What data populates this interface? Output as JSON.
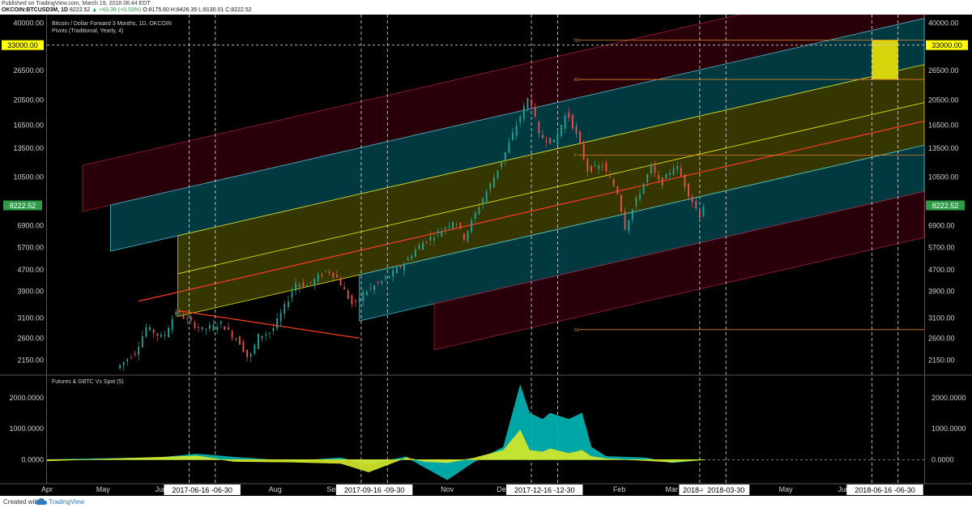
{
  "header": {
    "published": "Published on TradingView.com, March 19, 2018 06:44 EDT",
    "symbol": "OKCOIN:BTCUSD3M, 1D",
    "last": "8222.52",
    "change": "▲ +43.36 (+0.53%)",
    "ohlc": "O:8175.60 H:8426.35 L:8130.01 C:8222.52"
  },
  "footer": {
    "created_with": "Created with",
    "brand": "TradingView"
  },
  "chart_data": [
    {
      "type": "candlestick",
      "title": "Bitcoin / Dollar Forward 3 Months, 1D, OKCOIN",
      "subtitle": "Pivots (Traditional, Yearly, 4)",
      "y_scale": "log",
      "ylim": [
        1900,
        43000
      ],
      "y_ticks": [
        "2150.00",
        "2600.00",
        "3100.00",
        "3900.00",
        "4700.00",
        "5700.00",
        "6900.00",
        "10500.00",
        "13500.00",
        "16500.00",
        "20500.00",
        "26500.00",
        "40000.00"
      ],
      "highlight_label": "33000.00",
      "highlight_value": 33000,
      "last_price_label": "8222.52",
      "last_price": 8222.52,
      "x_range": [
        "2017-04-01",
        "2018-07-14"
      ],
      "x_tick_labels": [
        {
          "label": "Apr",
          "date": "2017-04-01"
        },
        {
          "label": "May",
          "date": "2017-05-01"
        },
        {
          "label": "Jun",
          "date": "2017-06-01"
        },
        {
          "label": "Aug",
          "date": "2017-08-01"
        },
        {
          "label": "Sep",
          "date": "2017-09-01"
        },
        {
          "label": "Nov",
          "date": "2017-11-01"
        },
        {
          "label": "Dec",
          "date": "2017-12-01"
        },
        {
          "label": "Feb",
          "date": "2018-02-01"
        },
        {
          "label": "Mar",
          "date": "2018-03-01"
        },
        {
          "label": "May",
          "date": "2018-05-01"
        },
        {
          "label": "Jun",
          "date": "2018-06-01"
        }
      ],
      "x_highlight_labels": [
        {
          "label": "2017-06-16 -06-30",
          "date": "2017-06-23"
        },
        {
          "label": "2017-09-16 -09-30",
          "date": "2017-09-23"
        },
        {
          "label": "2017-12-16 -12-30",
          "date": "2017-12-23"
        },
        {
          "label": "2018-0",
          "date": "2018-03-13"
        },
        {
          "label": "2018-03-30",
          "date": "2018-03-30"
        },
        {
          "label": "2018-06-16 -06-30",
          "date": "2018-06-23"
        }
      ],
      "expiry_lines": [
        "2017-06-16",
        "2017-06-30",
        "2017-09-16",
        "2017-09-30",
        "2017-12-16",
        "2017-12-30",
        "2018-03-16",
        "2018-03-30",
        "2018-06-16",
        "2018-06-30"
      ],
      "price_path": [
        {
          "date": "2017-05-10",
          "price": 2000
        },
        {
          "date": "2017-05-20",
          "price": 2300
        },
        {
          "date": "2017-05-26",
          "price": 2850
        },
        {
          "date": "2017-06-04",
          "price": 2600
        },
        {
          "date": "2017-06-11",
          "price": 3300
        },
        {
          "date": "2017-06-18",
          "price": 3000
        },
        {
          "date": "2017-06-25",
          "price": 2800
        },
        {
          "date": "2017-07-05",
          "price": 2950
        },
        {
          "date": "2017-07-15",
          "price": 2500
        },
        {
          "date": "2017-07-20",
          "price": 2150
        },
        {
          "date": "2017-07-25",
          "price": 2650
        },
        {
          "date": "2017-08-01",
          "price": 2750
        },
        {
          "date": "2017-08-07",
          "price": 3300
        },
        {
          "date": "2017-08-14",
          "price": 4200
        },
        {
          "date": "2017-08-20",
          "price": 4100
        },
        {
          "date": "2017-08-31",
          "price": 4700
        },
        {
          "date": "2017-09-05",
          "price": 4400
        },
        {
          "date": "2017-09-14",
          "price": 3400
        },
        {
          "date": "2017-09-18",
          "price": 3800
        },
        {
          "date": "2017-09-30",
          "price": 4300
        },
        {
          "date": "2017-10-10",
          "price": 4900
        },
        {
          "date": "2017-10-20",
          "price": 5900
        },
        {
          "date": "2017-11-01",
          "price": 6700
        },
        {
          "date": "2017-11-07",
          "price": 7300
        },
        {
          "date": "2017-11-12",
          "price": 6200
        },
        {
          "date": "2017-11-20",
          "price": 8200
        },
        {
          "date": "2017-11-28",
          "price": 10500
        },
        {
          "date": "2017-12-05",
          "price": 13500
        },
        {
          "date": "2017-12-10",
          "price": 16500
        },
        {
          "date": "2017-12-17",
          "price": 21500
        },
        {
          "date": "2017-12-22",
          "price": 15000
        },
        {
          "date": "2017-12-30",
          "price": 14200
        },
        {
          "date": "2018-01-06",
          "price": 18500
        },
        {
          "date": "2018-01-12",
          "price": 14500
        },
        {
          "date": "2018-01-17",
          "price": 11200
        },
        {
          "date": "2018-01-25",
          "price": 11600
        },
        {
          "date": "2018-02-02",
          "price": 9200
        },
        {
          "date": "2018-02-06",
          "price": 6800
        },
        {
          "date": "2018-02-12",
          "price": 8600
        },
        {
          "date": "2018-02-20",
          "price": 11500
        },
        {
          "date": "2018-02-25",
          "price": 9800
        },
        {
          "date": "2018-03-05",
          "price": 11800
        },
        {
          "date": "2018-03-12",
          "price": 9100
        },
        {
          "date": "2018-03-18",
          "price": 7500
        },
        {
          "date": "2018-03-19",
          "price": 8222.52
        }
      ],
      "pivot_levels": [
        {
          "price": 34500,
          "label": "R2"
        },
        {
          "price": 24500,
          "label": "R1"
        },
        {
          "price": 12700,
          "label": "P"
        },
        {
          "price": 2800,
          "label": "S1"
        }
      ],
      "pitchfork": {
        "pivots": [
          {
            "date": "2017-06-10",
            "price": 3300
          },
          {
            "date": "2017-09-15",
            "price": 2600
          },
          {
            "date": "2017-10-25",
            "price": 6300
          }
        ],
        "median_slope_per_day": 0.00372
      },
      "colors": {
        "up": "#26a69a",
        "down": "#ef5350",
        "median": "#ff3b1f",
        "highlight": "#ffff00",
        "target_box": "#d6d40a"
      }
    },
    {
      "type": "area",
      "title": "Futures & GBTC Vs Spot (5)",
      "y_tick_labels": [
        "2000.0000",
        "1000.0000",
        "0.0000"
      ],
      "ylim": [
        -750,
        2700
      ],
      "series": [
        {
          "color": "#00b3b3",
          "values": [
            {
              "date": "2017-04-01",
              "v": 0
            },
            {
              "date": "2017-06-01",
              "v": 70
            },
            {
              "date": "2017-06-20",
              "v": 180
            },
            {
              "date": "2017-07-10",
              "v": 80
            },
            {
              "date": "2017-08-10",
              "v": -50
            },
            {
              "date": "2017-09-05",
              "v": 60
            },
            {
              "date": "2017-09-20",
              "v": -150
            },
            {
              "date": "2017-10-10",
              "v": 90
            },
            {
              "date": "2017-10-20",
              "v": -250
            },
            {
              "date": "2017-11-01",
              "v": -650
            },
            {
              "date": "2017-11-15",
              "v": -80
            },
            {
              "date": "2017-12-01",
              "v": 400
            },
            {
              "date": "2017-12-10",
              "v": 2400
            },
            {
              "date": "2017-12-15",
              "v": 1500
            },
            {
              "date": "2017-12-22",
              "v": 1300
            },
            {
              "date": "2017-12-26",
              "v": 1500
            },
            {
              "date": "2018-01-05",
              "v": 1300
            },
            {
              "date": "2018-01-12",
              "v": 1500
            },
            {
              "date": "2018-01-17",
              "v": 400
            },
            {
              "date": "2018-01-25",
              "v": 100
            },
            {
              "date": "2018-02-15",
              "v": 60
            },
            {
              "date": "2018-03-01",
              "v": -100
            },
            {
              "date": "2018-03-19",
              "v": 0
            }
          ]
        },
        {
          "color": "#d4e82a",
          "values": [
            {
              "date": "2017-04-01",
              "v": -40
            },
            {
              "date": "2017-06-01",
              "v": 80
            },
            {
              "date": "2017-06-20",
              "v": 120
            },
            {
              "date": "2017-07-10",
              "v": -60
            },
            {
              "date": "2017-08-10",
              "v": -80
            },
            {
              "date": "2017-09-05",
              "v": -120
            },
            {
              "date": "2017-09-20",
              "v": -400
            },
            {
              "date": "2017-10-10",
              "v": 60
            },
            {
              "date": "2017-10-20",
              "v": -60
            },
            {
              "date": "2017-11-01",
              "v": -100
            },
            {
              "date": "2017-11-15",
              "v": 50
            },
            {
              "date": "2017-12-01",
              "v": 300
            },
            {
              "date": "2017-12-10",
              "v": 950
            },
            {
              "date": "2017-12-15",
              "v": 300
            },
            {
              "date": "2017-12-22",
              "v": 250
            },
            {
              "date": "2017-12-26",
              "v": 350
            },
            {
              "date": "2018-01-05",
              "v": 200
            },
            {
              "date": "2018-01-12",
              "v": 300
            },
            {
              "date": "2018-01-17",
              "v": 100
            },
            {
              "date": "2018-01-25",
              "v": 30
            },
            {
              "date": "2018-02-15",
              "v": -30
            },
            {
              "date": "2018-03-01",
              "v": -80
            },
            {
              "date": "2018-03-19",
              "v": 0
            }
          ]
        }
      ]
    }
  ]
}
